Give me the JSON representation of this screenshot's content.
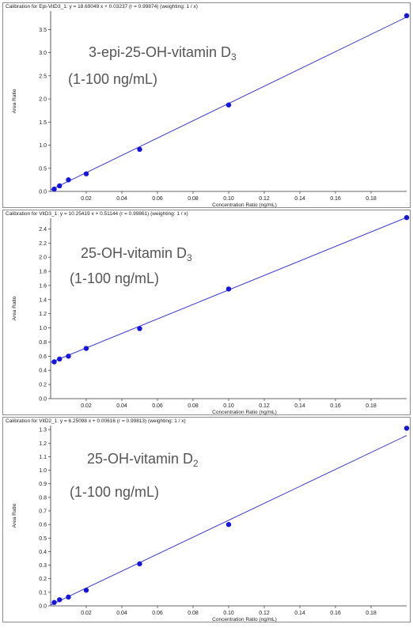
{
  "chart_data": [
    {
      "type": "scatter",
      "header": "Calibration for Epi-VitD3_1: y = 18.69049 x + 0.03237 (r = 0.99874) (weighting: 1 / x)",
      "title_line1": "3-epi-25-OH-vitamin D",
      "title_sub": "3",
      "title_line2": "(1-100 ng/mL)",
      "xlabel": "Concentration Ratio (ng/mL)",
      "ylabel": "Area Ratio",
      "xlim": [
        0,
        0.2
      ],
      "ylim": [
        0,
        3.9
      ],
      "xticks": [
        0.02,
        0.04,
        0.06,
        0.08,
        0.1,
        0.12,
        0.14,
        0.16,
        0.18
      ],
      "xtick_labels": [
        "0.02",
        "0.04",
        "0.06",
        "0.08",
        "0.10",
        "0.12",
        "0.14",
        "0.16",
        "0.18"
      ],
      "yticks": [
        0.0,
        0.5,
        1.0,
        1.5,
        2.0,
        2.5,
        3.0,
        3.5
      ],
      "ytick_labels": [
        "0.0",
        "0.5",
        "1.0",
        "1.5",
        "2.0",
        "2.5",
        "3.0",
        "3.5"
      ],
      "points": [
        [
          0.002,
          0.05
        ],
        [
          0.005,
          0.12
        ],
        [
          0.01,
          0.25
        ],
        [
          0.02,
          0.38
        ],
        [
          0.05,
          0.91
        ],
        [
          0.1,
          1.87
        ],
        [
          0.2,
          3.8
        ]
      ],
      "fit": {
        "slope": 18.69049,
        "intercept": 0.03237
      },
      "series_color": "#1414e6",
      "line_color": "#3a3ae0"
    },
    {
      "type": "scatter",
      "header": "Calibration for VitD3_1: y = 10.25419 x + 0.51144 (r = 0.99861) (weighting: 1 / x)",
      "title_line1": "25-OH-vitamin D",
      "title_sub": "3",
      "title_line2": "(1-100 ng/mL)",
      "xlabel": "Concentration Ratio (ng/mL)",
      "ylabel": "Area Ratio",
      "xlim": [
        0,
        0.2
      ],
      "ylim": [
        0,
        2.55
      ],
      "xticks": [
        0.02,
        0.04,
        0.06,
        0.08,
        0.1,
        0.12,
        0.14,
        0.16,
        0.18
      ],
      "xtick_labels": [
        "0.02",
        "0.04",
        "0.06",
        "0.08",
        "0.10",
        "0.12",
        "0.14",
        "0.16",
        "0.18"
      ],
      "yticks": [
        0.0,
        0.2,
        0.4,
        0.6,
        0.8,
        1.0,
        1.2,
        1.4,
        1.6,
        1.8,
        2.0,
        2.2,
        2.4
      ],
      "ytick_labels": [
        "0.0",
        "0.2",
        "0.4",
        "0.6",
        "0.8",
        "1.0",
        "1.2",
        "1.4",
        "1.6",
        "1.8",
        "2.0",
        "2.2",
        "2.4"
      ],
      "points": [
        [
          0.002,
          0.52
        ],
        [
          0.005,
          0.56
        ],
        [
          0.01,
          0.6
        ],
        [
          0.02,
          0.71
        ],
        [
          0.05,
          0.99
        ],
        [
          0.1,
          1.55
        ],
        [
          0.2,
          2.56
        ]
      ],
      "fit": {
        "slope": 10.25419,
        "intercept": 0.51144
      },
      "series_color": "#1414e6",
      "line_color": "#3a3ae0"
    },
    {
      "type": "scatter",
      "header": "Calibration for VitD2_1: y = 6.25098 x + 0.00616 (r = 0.99813) (weighting: 1 / x)",
      "title_line1": "25-OH-vitamin D",
      "title_sub": "2",
      "title_line2": "(1-100 ng/mL)",
      "xlabel": "Concentration Ratio (ng/mL)",
      "ylabel": "Area Ratio",
      "xlim": [
        0,
        0.2
      ],
      "ylim": [
        0,
        1.33
      ],
      "xticks": [
        0.02,
        0.04,
        0.06,
        0.08,
        0.1,
        0.12,
        0.14,
        0.16,
        0.18
      ],
      "xtick_labels": [
        "0.02",
        "0.04",
        "0.06",
        "0.08",
        "0.10",
        "0.12",
        "0.14",
        "0.16",
        "0.18"
      ],
      "yticks": [
        0.0,
        0.1,
        0.2,
        0.3,
        0.4,
        0.5,
        0.6,
        0.7,
        0.8,
        0.9,
        1.0,
        1.1,
        1.2,
        1.3
      ],
      "ytick_labels": [
        "0.0",
        "0.1",
        "0.2",
        "0.3",
        "0.4",
        "0.5",
        "0.6",
        "0.7",
        "0.8",
        "0.9",
        "1.0",
        "1.1",
        "1.2",
        "1.3"
      ],
      "points": [
        [
          0.002,
          0.025
        ],
        [
          0.005,
          0.045
        ],
        [
          0.01,
          0.065
        ],
        [
          0.02,
          0.115
        ],
        [
          0.05,
          0.31
        ],
        [
          0.1,
          0.6
        ],
        [
          0.2,
          1.31
        ]
      ],
      "fit": {
        "slope": 6.25098,
        "intercept": 0.00616
      },
      "series_color": "#1414e6",
      "line_color": "#3a3ae0"
    }
  ]
}
